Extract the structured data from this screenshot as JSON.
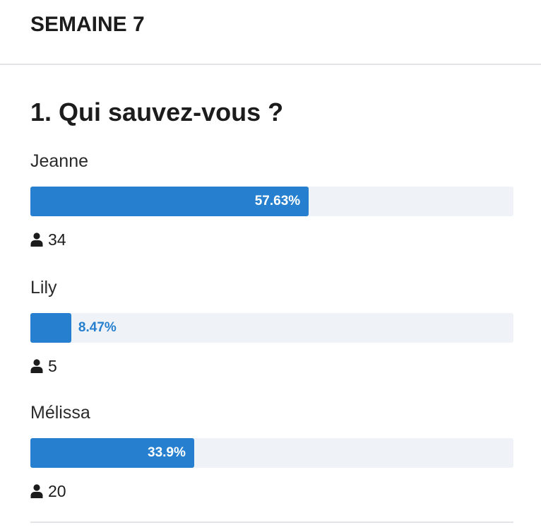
{
  "week": "SEMAINE 7",
  "question": {
    "title": "1. Qui sauvez-vous ?",
    "options": [
      {
        "label": "Jeanne",
        "percent_text": "57.63%",
        "percent": 57.63,
        "votes": "34"
      },
      {
        "label": "Lily",
        "percent_text": "8.47%",
        "percent": 8.47,
        "votes": "5"
      },
      {
        "label": "Mélissa",
        "percent_text": "33.9%",
        "percent": 33.9,
        "votes": "20"
      }
    ]
  },
  "colors": {
    "bar_fill": "#2680cf",
    "bar_track": "#eff3f7"
  },
  "icons": {
    "votes": "user-icon"
  }
}
